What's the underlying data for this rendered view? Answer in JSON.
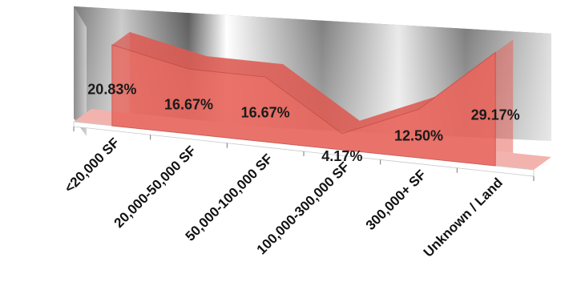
{
  "chart_data": {
    "type": "area",
    "view": "3d",
    "categories": [
      "<20,000 SF",
      "20,000-50,000 SF",
      "50,000-100,000 SF",
      "100,000-300,000 SF",
      "300,000+ SF",
      "Unknown / Land"
    ],
    "values": [
      20.83,
      16.67,
      16.67,
      4.17,
      12.5,
      29.17
    ],
    "data_labels": [
      "20.83%",
      "16.67%",
      "16.67%",
      "4.17%",
      "12.50%",
      "29.17%"
    ],
    "title": "",
    "xlabel": "",
    "ylabel": "",
    "ylim": [
      0,
      30
    ],
    "grid": false,
    "legend": "none",
    "series_color": "#e8665d",
    "floor_color": "#f2b3ae",
    "wall_color_light": "#f2f2f2",
    "wall_color_dark": "#6e6e6e"
  }
}
